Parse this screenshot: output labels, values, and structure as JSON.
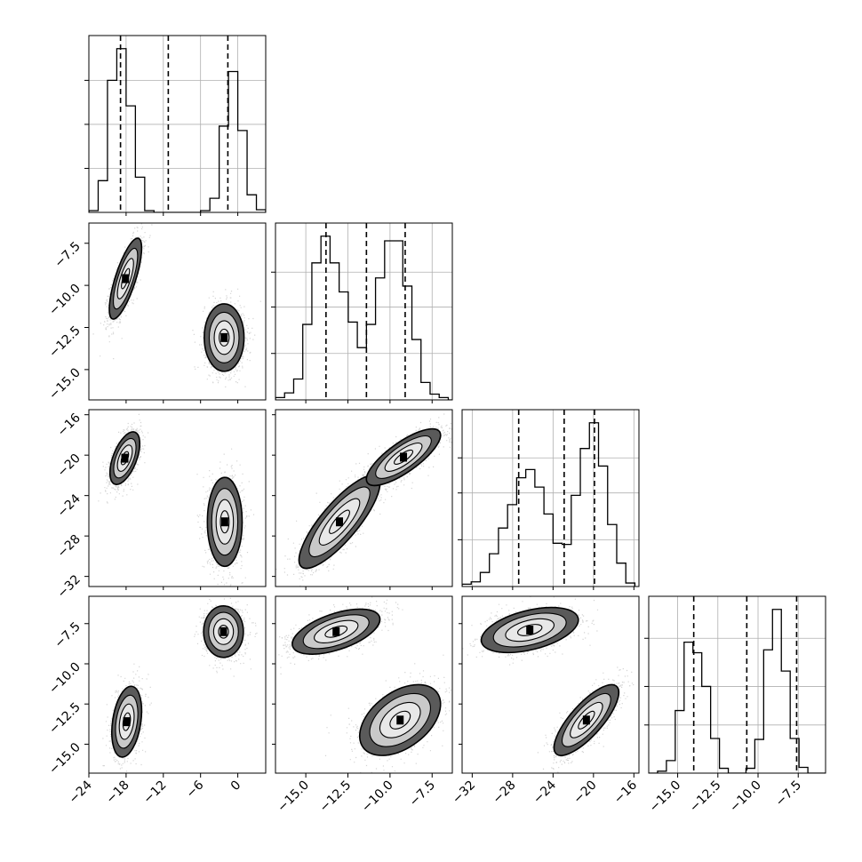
{
  "chart_data": {
    "type": "corner",
    "title": "",
    "grid": true,
    "quantile_lines": "dashed",
    "colors": {
      "line": "#000000",
      "grid": "#b0b0b0",
      "point": "#666666",
      "fill_dark": "#000000",
      "fill_mid": "#5a5a5a",
      "fill_light": "#e8e8e8"
    },
    "parameters": [
      {
        "label": "",
        "range": [
          -24,
          4.5
        ],
        "ticks": [
          -24,
          -18,
          -12,
          -6,
          0
        ],
        "tick_labels": [
          "−24",
          "−18",
          "−12",
          "−6",
          "0"
        ]
      },
      {
        "label": "",
        "range": [
          -16.8,
          -6.3
        ],
        "ticks": [
          -15.0,
          -12.5,
          -10.0,
          -7.5
        ],
        "tick_labels": [
          "−15.0",
          "−12.5",
          "−10.0",
          "−7.5"
        ]
      },
      {
        "label": "",
        "range": [
          -33,
          -15.5
        ],
        "ticks": [
          -32,
          -28,
          -24,
          -20,
          -16
        ],
        "tick_labels": [
          "−32",
          "−28",
          "−24",
          "−20",
          "−16"
        ]
      },
      {
        "label": "",
        "range": [
          -16.8,
          -5.8
        ],
        "ticks": [
          -15.0,
          -12.5,
          -10.0,
          -7.5
        ],
        "tick_labels": [
          "−15.0",
          "−12.5",
          "−10.0",
          "−7.5"
        ]
      }
    ],
    "histograms": [
      {
        "parameter": 0,
        "bin_edges": [
          -24,
          -22.5,
          -21,
          -19.5,
          -18,
          -16.5,
          -15,
          -13.5,
          -12,
          -10.5,
          -9,
          -7.5,
          -6,
          -4.5,
          -3,
          -1.5,
          0,
          1.5,
          3,
          4.5
        ],
        "counts": [
          2,
          36,
          150,
          186,
          121,
          40,
          2,
          0,
          0,
          0,
          0,
          0,
          2,
          16,
          98,
          160,
          93,
          20,
          3
        ],
        "quantiles": [
          -18.9,
          -11.2,
          -1.6
        ]
      },
      {
        "parameter": 1,
        "bin_edges": [
          -16.8,
          -16.26,
          -15.72,
          -15.18,
          -14.64,
          -14.1,
          -13.56,
          -13.02,
          -12.48,
          -11.94,
          -11.4,
          -10.86,
          -10.32,
          -9.78,
          -9.24,
          -8.7,
          -8.16,
          -7.62,
          -7.08,
          -6.54,
          -6.3
        ],
        "counts": [
          2,
          6,
          18,
          65,
          118,
          141,
          118,
          93,
          67,
          45,
          65,
          105,
          137,
          137,
          98,
          52,
          15,
          5,
          2,
          0
        ],
        "quantiles": [
          -13.8,
          -11.4,
          -9.1
        ]
      },
      {
        "parameter": 2,
        "bin_edges": [
          -33,
          -32.1,
          -31.2,
          -30.3,
          -29.4,
          -28.5,
          -27.6,
          -26.7,
          -25.8,
          -24.9,
          -24,
          -23.1,
          -22.2,
          -21.3,
          -20.4,
          -19.5,
          -18.6,
          -17.7,
          -16.8,
          -15.9
        ],
        "counts": [
          2,
          4,
          12,
          28,
          50,
          70,
          93,
          100,
          85,
          62,
          37,
          36,
          78,
          118,
          140,
          103,
          53,
          20,
          3
        ],
        "quantiles": [
          -27.4,
          -22.9,
          -19.9
        ]
      },
      {
        "parameter": 3,
        "bin_edges": [
          -16.8,
          -16.25,
          -15.7,
          -15.15,
          -14.6,
          -14.05,
          -13.5,
          -12.95,
          -12.4,
          -11.85,
          -11.3,
          -10.75,
          -10.2,
          -9.65,
          -9.1,
          -8.55,
          -8.0,
          -7.45,
          -6.9,
          -6.35,
          -5.8
        ],
        "counts": [
          0,
          2,
          13,
          65,
          136,
          125,
          90,
          36,
          5,
          0,
          0,
          5,
          35,
          128,
          170,
          106,
          36,
          6,
          0,
          0
        ],
        "quantiles": [
          -14.0,
          -10.7,
          -7.6
        ]
      }
    ],
    "scatter_panels": [
      {
        "x": 0,
        "y": 1,
        "modes": [
          {
            "mean": [
              -18.1,
              -9.6
            ],
            "std": [
              1.3,
              1.2
            ],
            "rho": 0.75,
            "weight": 0.5
          },
          {
            "mean": [
              -2.2,
              -13.1
            ],
            "std": [
              1.6,
              1.0
            ],
            "rho": 0.0,
            "weight": 0.5
          }
        ]
      },
      {
        "x": 0,
        "y": 2,
        "modes": [
          {
            "mean": [
              -18.2,
              -20.3
            ],
            "std": [
              1.2,
              1.3
            ],
            "rho": 0.55,
            "weight": 0.5
          },
          {
            "mean": [
              -2.1,
              -26.6
            ],
            "std": [
              1.4,
              2.2
            ],
            "rho": 0.0,
            "weight": 0.5
          }
        ]
      },
      {
        "x": 0,
        "y": 3,
        "modes": [
          {
            "mean": [
              -2.3,
              -8.0
            ],
            "std": [
              1.6,
              0.8
            ],
            "rho": 0.0,
            "weight": 0.5
          },
          {
            "mean": [
              -17.9,
              -13.6
            ],
            "std": [
              1.2,
              1.1
            ],
            "rho": 0.3,
            "weight": 0.5
          }
        ]
      },
      {
        "x": 1,
        "y": 2,
        "modes": [
          {
            "mean": [
              -13.0,
              -26.6
            ],
            "std": [
              1.2,
              2.3
            ],
            "rho": 0.82,
            "weight": 0.5
          },
          {
            "mean": [
              -9.2,
              -20.2
            ],
            "std": [
              1.1,
              1.4
            ],
            "rho": 0.78,
            "weight": 0.5
          }
        ]
      },
      {
        "x": 1,
        "y": 3,
        "modes": [
          {
            "mean": [
              -13.2,
              -8.0
            ],
            "std": [
              1.3,
              0.7
            ],
            "rho": 0.55,
            "weight": 0.5
          },
          {
            "mean": [
              -9.4,
              -13.5
            ],
            "std": [
              1.2,
              1.1
            ],
            "rho": 0.45,
            "weight": 0.5
          }
        ]
      },
      {
        "x": 2,
        "y": 3,
        "modes": [
          {
            "mean": [
              -26.3,
              -7.9
            ],
            "std": [
              2.4,
              0.7
            ],
            "rho": 0.45,
            "weight": 0.5
          },
          {
            "mean": [
              -20.7,
              -13.5
            ],
            "std": [
              1.6,
              1.1
            ],
            "rho": 0.78,
            "weight": 0.5
          }
        ]
      }
    ]
  }
}
